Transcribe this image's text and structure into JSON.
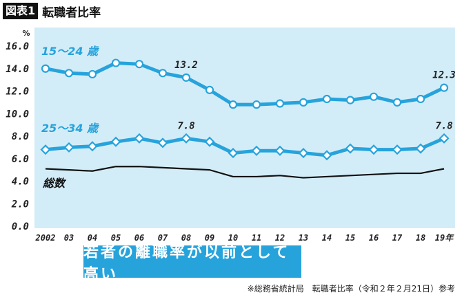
{
  "header": {
    "badge": "図表1",
    "title": "転職者比率"
  },
  "banner": "若者の離職率が以前として高い",
  "footer": "※総務省統計局　転職者比率（令和２年２月21日）参考",
  "colors": {
    "plot_bg": "#d3edf8",
    "series_blue": "#27a3dc",
    "total": "#111111"
  },
  "chart_data": {
    "type": "line",
    "ylabel": "%",
    "ylim": [
      0,
      16
    ],
    "yticks": [
      "0.0",
      "2.0",
      "4.0",
      "6.0",
      "8.0",
      "10.0",
      "12.0",
      "14.0",
      "16.0"
    ],
    "categories": [
      "2002",
      "03",
      "04",
      "05",
      "06",
      "07",
      "08",
      "09",
      "10",
      "11",
      "12",
      "13",
      "14",
      "15",
      "16",
      "17",
      "18",
      "19年"
    ],
    "grid": false,
    "series": [
      {
        "name": "15〜24 歳",
        "marker": "circle",
        "values": [
          14.0,
          13.6,
          13.5,
          14.5,
          14.4,
          13.6,
          13.2,
          12.1,
          10.8,
          10.8,
          10.9,
          11.0,
          11.3,
          11.2,
          11.5,
          11.0,
          11.3,
          12.3
        ]
      },
      {
        "name": "25〜34 歳",
        "marker": "diamond",
        "values": [
          6.8,
          7.0,
          7.1,
          7.5,
          7.8,
          7.4,
          7.8,
          7.5,
          6.5,
          6.7,
          6.7,
          6.5,
          6.3,
          6.9,
          6.8,
          6.8,
          6.9,
          7.8
        ]
      },
      {
        "name": "総数",
        "marker": "none",
        "values": [
          5.1,
          5.0,
          4.9,
          5.3,
          5.3,
          5.2,
          5.1,
          5.0,
          4.4,
          4.4,
          4.5,
          4.3,
          4.4,
          4.5,
          4.6,
          4.7,
          4.7,
          5.1
        ]
      }
    ],
    "annotations": [
      {
        "series": 0,
        "index": 6,
        "text": "13.2"
      },
      {
        "series": 0,
        "index": 17,
        "text": "12.3"
      },
      {
        "series": 1,
        "index": 6,
        "text": "7.8"
      },
      {
        "series": 1,
        "index": 17,
        "text": "7.8"
      }
    ]
  }
}
